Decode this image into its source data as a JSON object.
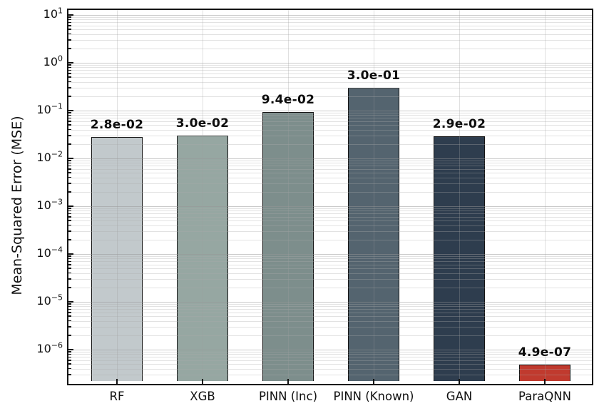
{
  "chart_data": {
    "type": "bar",
    "title": "",
    "ylabel": "Mean-Squared Error (MSE)",
    "xlabel": "",
    "yscale": "log",
    "grid": true,
    "legend": null,
    "categories": [
      "RF",
      "XGB",
      "PINN (Inc)",
      "PINN (Known)",
      "GAN",
      "ParaQNN"
    ],
    "values": [
      0.028,
      0.03,
      0.094,
      0.3,
      0.029,
      4.9e-07
    ],
    "value_labels": [
      "2.8e-02",
      "3.0e-02",
      "9.4e-02",
      "3.0e-01",
      "2.9e-02",
      "4.9e-07"
    ],
    "bar_colors": [
      "#c2c9cc",
      "#96a7a2",
      "#7d8e8c",
      "#54646f",
      "#2e3d4e",
      "#c03a2e"
    ],
    "bar_edge_color": "#141414",
    "ylim": [
      2.2e-07,
      12.7
    ],
    "ytick_exponents": [
      1,
      0,
      -1,
      -2,
      -3,
      -4,
      -5,
      -6
    ]
  }
}
